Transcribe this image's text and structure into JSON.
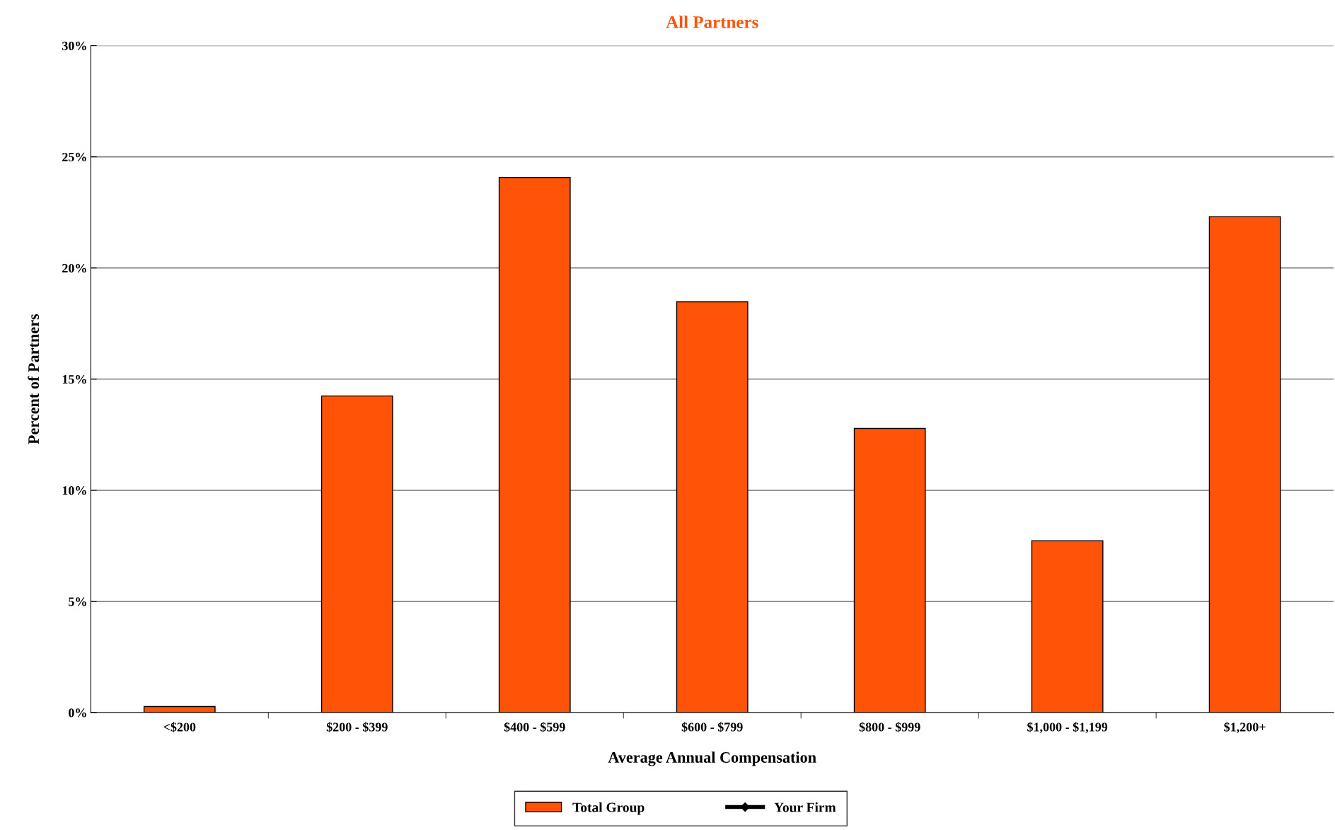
{
  "chart_data": {
    "type": "bar",
    "title": "All Partners",
    "xlabel": "Average Annual Compensation",
    "ylabel": "Percent of Partners",
    "categories": [
      "<$200",
      "$200 - $399",
      "$400 - $599",
      "$600 - $799",
      "$800 - $999",
      "$1,000 - $1,199",
      "$1,200+"
    ],
    "series": [
      {
        "name": "Total Group",
        "color": "#ff5308",
        "values": [
          0.27,
          14.24,
          24.07,
          18.48,
          12.78,
          7.73,
          22.31
        ]
      },
      {
        "name": "Your Firm",
        "type": "line",
        "color": "#000000",
        "marker": "diamond",
        "values": [
          null,
          null,
          null,
          null,
          null,
          null,
          null
        ]
      }
    ],
    "ylim": [
      0,
      30
    ],
    "yticks": [
      {
        "value": 0,
        "label": "0%"
      },
      {
        "value": 5,
        "label": "5%"
      },
      {
        "value": 10,
        "label": "10%"
      },
      {
        "value": 15,
        "label": "15%"
      },
      {
        "value": 20,
        "label": "20%"
      },
      {
        "value": 25,
        "label": "25%"
      },
      {
        "value": 30,
        "label": "30%"
      }
    ],
    "grid": "y",
    "legend": "bottom"
  }
}
